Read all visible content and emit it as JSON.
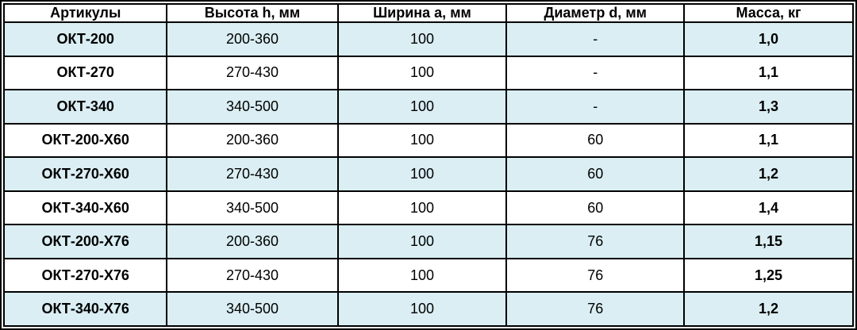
{
  "colors": {
    "stripe_blue": "#daeef3",
    "row_white": "#ffffff",
    "border": "#000000",
    "text": "#000000"
  },
  "table": {
    "columns": [
      "Артикулы",
      "Высота h, мм",
      "Ширина a, мм",
      "Диаметр d, мм",
      "Масса, кг"
    ],
    "rows": [
      {
        "article": "ОКТ-200",
        "height": "200-360",
        "width": "100",
        "diameter": "-",
        "mass": "1,0"
      },
      {
        "article": "ОКТ-270",
        "height": "270-430",
        "width": "100",
        "diameter": "-",
        "mass": "1,1"
      },
      {
        "article": "ОКТ-340",
        "height": "340-500",
        "width": "100",
        "diameter": "-",
        "mass": "1,3"
      },
      {
        "article": "ОКТ-200-Х60",
        "height": "200-360",
        "width": "100",
        "diameter": "60",
        "mass": "1,1"
      },
      {
        "article": "ОКТ-270-Х60",
        "height": "270-430",
        "width": "100",
        "diameter": "60",
        "mass": "1,2"
      },
      {
        "article": "ОКТ-340-Х60",
        "height": "340-500",
        "width": "100",
        "diameter": "60",
        "mass": "1,4"
      },
      {
        "article": "ОКТ-200-Х76",
        "height": "200-360",
        "width": "100",
        "diameter": "76",
        "mass": "1,15"
      },
      {
        "article": "ОКТ-270-Х76",
        "height": "270-430",
        "width": "100",
        "diameter": "76",
        "mass": "1,25"
      },
      {
        "article": "ОКТ-340-Х76",
        "height": "340-500",
        "width": "100",
        "diameter": "76",
        "mass": "1,2"
      }
    ]
  }
}
